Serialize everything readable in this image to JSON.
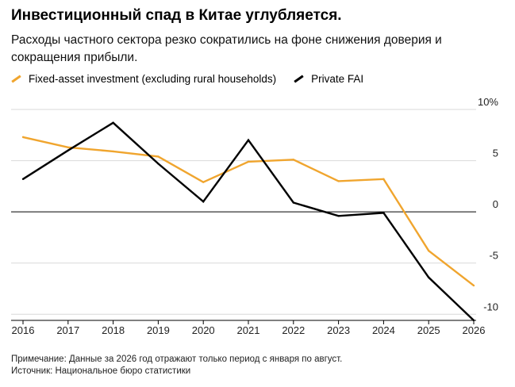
{
  "title": "Инвестиционный спад в Китае углубляется.",
  "subtitle": "Расходы частного сектора резко сократились на фоне снижения доверия и сокращения прибыли.",
  "legend": [
    {
      "label": "Fixed-asset investment (excluding rural households)",
      "color": "#f0a52e"
    },
    {
      "label": "Private FAI",
      "color": "#000000"
    }
  ],
  "chart_data": {
    "type": "line",
    "categories": [
      "2016",
      "2017",
      "2018",
      "2019",
      "2020",
      "2021",
      "2022",
      "2023",
      "2024",
      "2025",
      "2026"
    ],
    "series": [
      {
        "name": "Fixed-asset investment (excluding rural households)",
        "color": "#f0a52e",
        "values": [
          7.3,
          6.3,
          5.9,
          5.4,
          2.9,
          4.9,
          5.1,
          3.0,
          3.2,
          -3.8,
          -7.2
        ]
      },
      {
        "name": "Private FAI",
        "color": "#000000",
        "values": [
          3.2,
          6.0,
          8.7,
          4.7,
          1.0,
          7.0,
          0.9,
          -0.4,
          -0.1,
          -6.4,
          -10.6
        ]
      }
    ],
    "y_ticks": [
      "10%",
      "5",
      "0",
      "-5",
      "-10"
    ],
    "y_tick_values": [
      10,
      5,
      0,
      -5,
      -10
    ],
    "ylim": [
      -10.6,
      10
    ],
    "grid": true,
    "zero_line": true,
    "y_axis_position": "right",
    "legend_position": "top-left"
  },
  "footnote": {
    "note": "Примечание: Данные за 2026 год отражают только период с января по август.",
    "source": "Источник: Национальное бюро статистики"
  }
}
